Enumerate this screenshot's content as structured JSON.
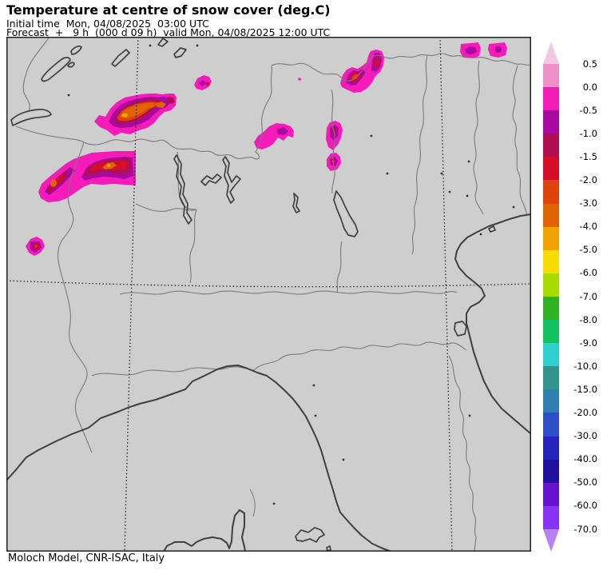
{
  "header": {
    "title": "Temperature at centre of snow cover (deg.C)",
    "initial_time_line": "Initial time  Mon, 04/08/2025  03:00 UTC",
    "forecast_line": "Forecast  +   9 h  (000 d 09 h)  valid Mon, 04/08/2025 12:00 UTC"
  },
  "footer": {
    "credit": "Moloch Model, CNR-ISAC, Italy"
  },
  "colorbar": {
    "unit": "deg.C",
    "tick_labels": [
      "0.5",
      "0.0",
      "-0.5",
      "-1.0",
      "-1.5",
      "-2.0",
      "-3.0",
      "-4.0",
      "-5.0",
      "-6.0",
      "-7.0",
      "-8.0",
      "-9.0",
      "-10.0",
      "-15.0",
      "-20.0",
      "-30.0",
      "-40.0",
      "-50.0",
      "-60.0",
      "-70.0"
    ],
    "band_colors": [
      "#EE8FC8",
      "#F41BB8",
      "#A909A0",
      "#B01052",
      "#D60D28",
      "#DE4409",
      "#E06404",
      "#EFA400",
      "#F8DC00",
      "#A8DC00",
      "#2FB223",
      "#12C160",
      "#2DD0CF",
      "#33948E",
      "#2F7FB0",
      "#2D50C7",
      "#2423BC",
      "#20129E",
      "#6613CE",
      "#8834F6"
    ],
    "arrow_top_color": "#F3C7E3",
    "arrow_bottom_color": "#B780F4"
  },
  "map": {
    "background_color": "#CECECE",
    "coast_color": "#3F3F3F",
    "border_color": "#7A7A7A",
    "graticule_color": "#141414",
    "frame_color": "#222222"
  }
}
